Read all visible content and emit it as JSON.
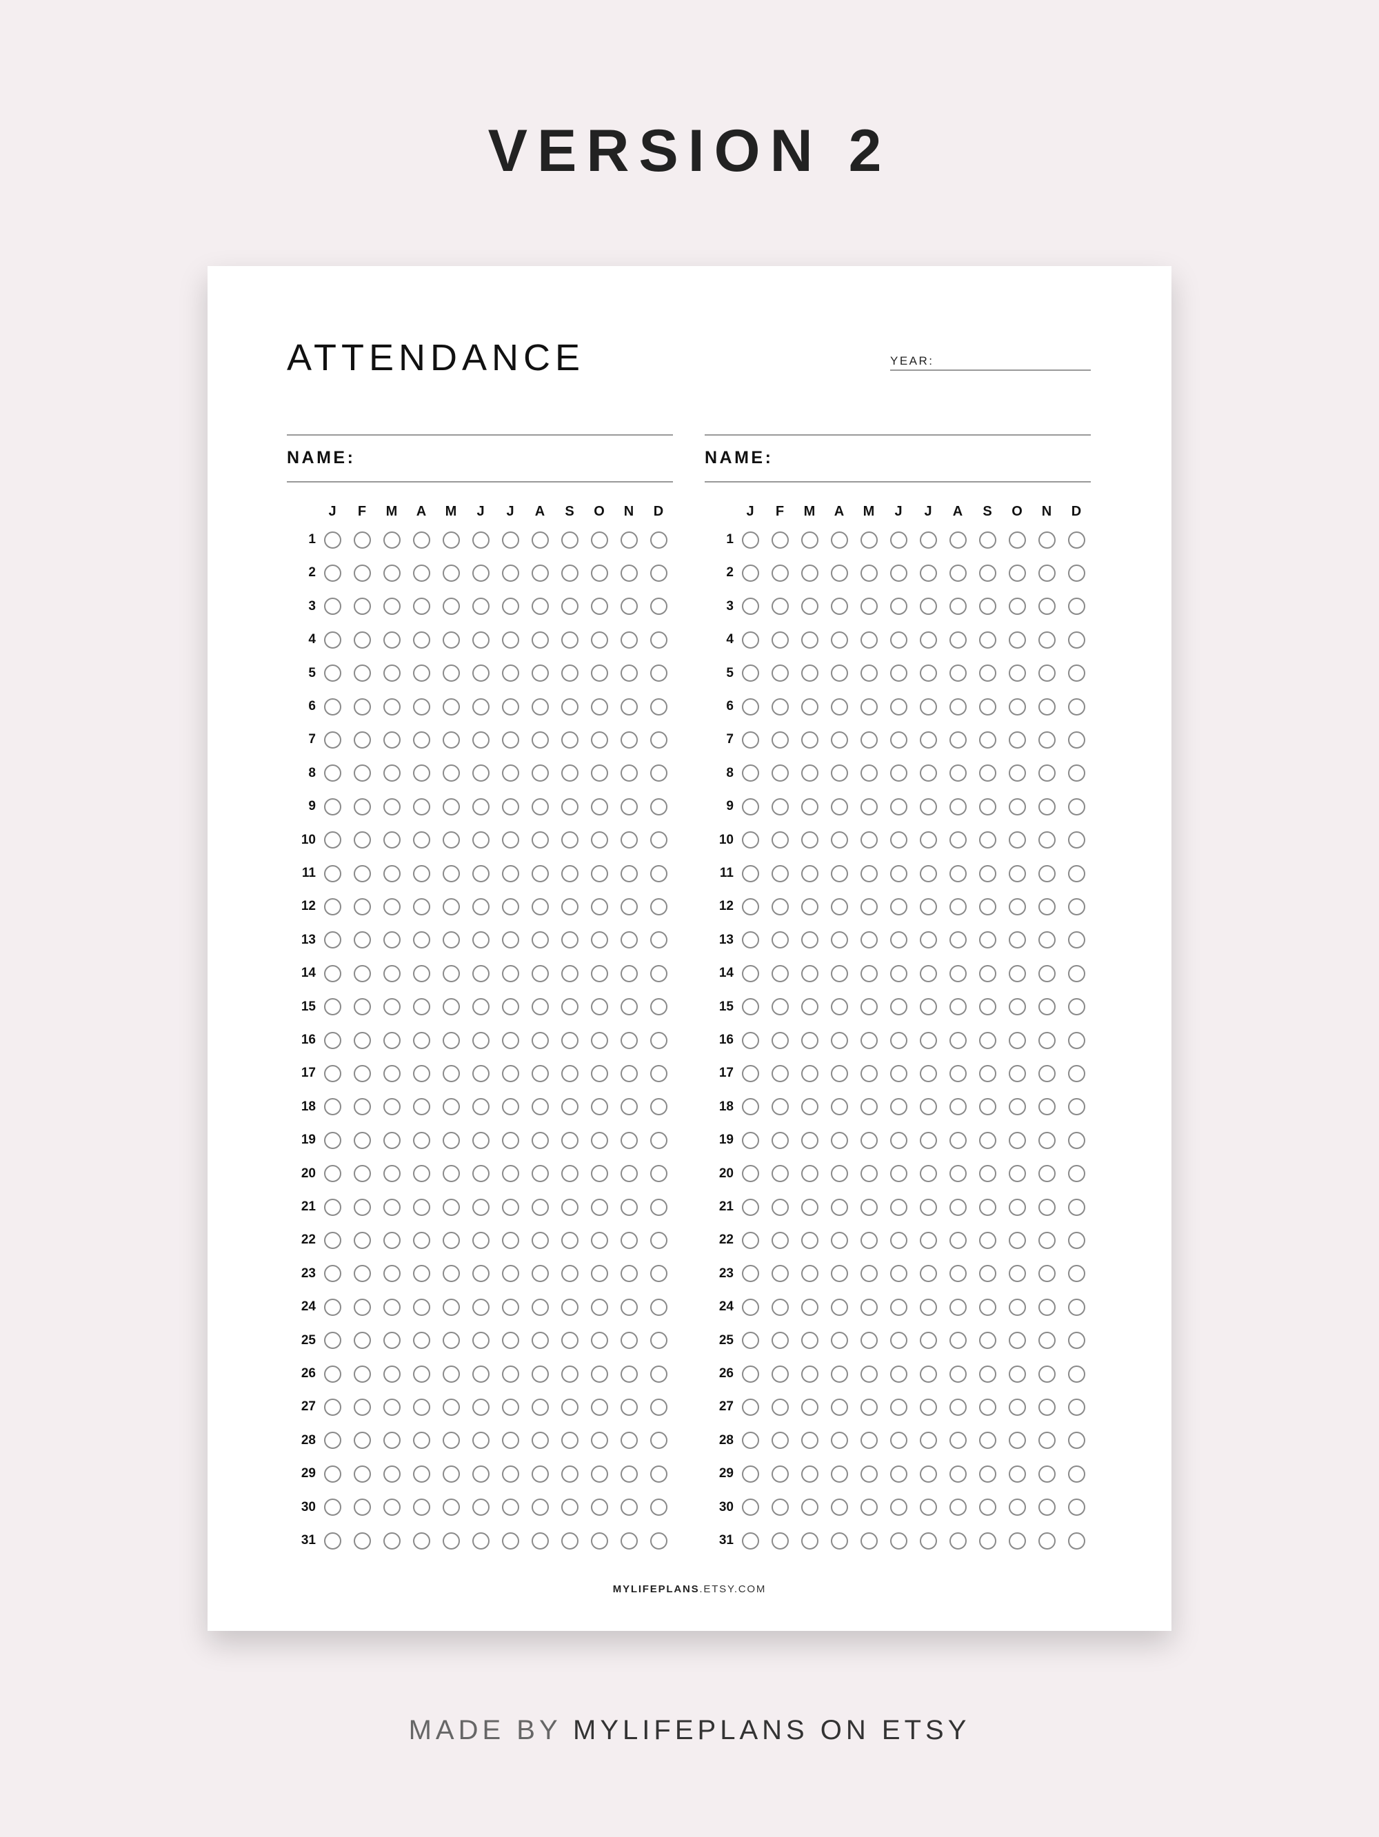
{
  "heading": "VERSION 2",
  "sheet": {
    "title": "ATTENDANCE",
    "year_label": "YEAR:",
    "name_label": "NAME:",
    "months": [
      "J",
      "F",
      "M",
      "A",
      "M",
      "J",
      "J",
      "A",
      "S",
      "O",
      "N",
      "D"
    ],
    "days": [
      1,
      2,
      3,
      4,
      5,
      6,
      7,
      8,
      9,
      10,
      11,
      12,
      13,
      14,
      15,
      16,
      17,
      18,
      19,
      20,
      21,
      22,
      23,
      24,
      25,
      26,
      27,
      28,
      29,
      30,
      31
    ],
    "blocks": 2,
    "footer_bold": "MYLIFEPLANS",
    "footer_rest": ".ETSY.COM"
  },
  "credit": {
    "prefix": "MADE BY ",
    "brand": "MYLIFEPLANS ON ETSY"
  },
  "colors": {
    "background": "#f4eef0",
    "paper": "#ffffff",
    "circle_stroke": "#8a8a8a"
  }
}
